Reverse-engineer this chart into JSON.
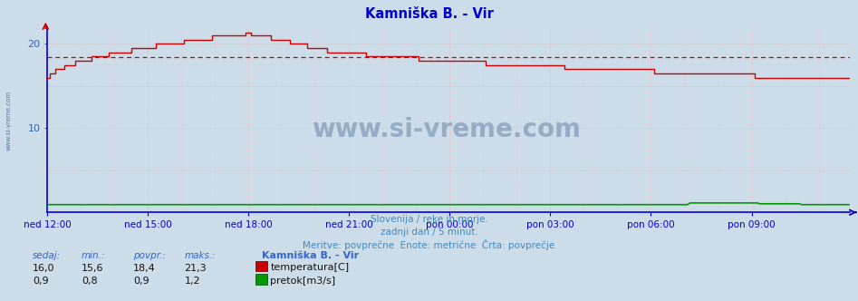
{
  "title": "Kamniška B. - Vir",
  "title_color": "#0000cc",
  "bg_color": "#ccdce8",
  "plot_bg_color": "#ccdce8",
  "grid_color_v": "#ffb0b0",
  "grid_color_h": "#ddbbbb",
  "ylabel_color": "#3366aa",
  "xlabel_color": "#3366aa",
  "axis_color": "#0000dd",
  "temp_color": "#cc0000",
  "flow_color": "#009900",
  "avg_color": "#cc0000",
  "watermark": "www.si-vreme.com",
  "watermark_color": "#1a3a7a",
  "side_text": "www.si-vreme.com",
  "subtitle1": "Slovenija / reke in morje.",
  "subtitle2": "zadnji dan / 5 minut.",
  "subtitle3": "Meritve: povprečne  Enote: metrične  Črta: povprečje",
  "subtitle_color": "#4488bb",
  "ylim": [
    0,
    22
  ],
  "yticks": [
    10,
    20
  ],
  "avg_temp": 18.4,
  "n_points": 288,
  "xtick_labels": [
    "ned 12:00",
    "ned 15:00",
    "ned 18:00",
    "ned 21:00",
    "pon 00:00",
    "pon 03:00",
    "pon 06:00",
    "pon 09:00"
  ],
  "xtick_positions": [
    0,
    36,
    72,
    108,
    144,
    180,
    216,
    252
  ],
  "temp_min": 15.6,
  "temp_max": 21.3,
  "temp_avg": 18.4,
  "temp_current": 16.0,
  "flow_min": 0.8,
  "flow_max": 1.2,
  "flow_avg": 0.9,
  "flow_current": 0.9,
  "stat_labels": [
    "sedaj:",
    "min.:",
    "povpr.:",
    "maks.:"
  ],
  "stat_label_color": "#3366cc",
  "info_title": "Kamniška B. - Vir",
  "info_temp_label": "temperatura[C]",
  "info_flow_label": "pretok[m3/s]",
  "temp_vals": [
    "16,0",
    "15,6",
    "18,4",
    "21,3"
  ],
  "flow_vals": [
    "0,9",
    "0,8",
    "0,9",
    "1,2"
  ]
}
